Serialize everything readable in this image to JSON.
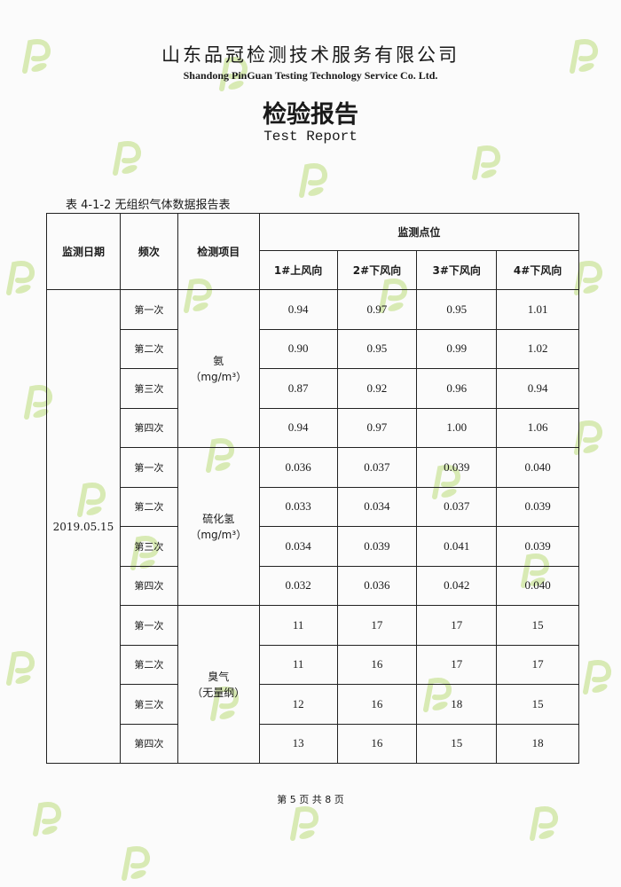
{
  "header": {
    "company_cn": "山东品冠检测技术服务有限公司",
    "company_en": "Shandong PinGuan Testing Technology Service Co. Ltd.",
    "title_cn": "检验报告",
    "title_en": "Test Report"
  },
  "watermark": {
    "logo_letter": "P",
    "color": "#9acd32"
  },
  "table": {
    "caption": "表 4-1-2 无组织气体数据报告表",
    "headers": {
      "date": "监测日期",
      "frequency": "频次",
      "item": "检测项目",
      "points_group": "监测点位"
    },
    "points": [
      "1#上风向",
      "2#下风向",
      "3#下风向",
      "4#下风向"
    ],
    "date": "2019.05.15",
    "frequencies": [
      "第一次",
      "第二次",
      "第三次",
      "第四次"
    ],
    "groups": [
      {
        "name": "氨",
        "unit": "（mg/m³）",
        "rows": [
          [
            "0.94",
            "0.97",
            "0.95",
            "1.01"
          ],
          [
            "0.90",
            "0.95",
            "0.99",
            "1.02"
          ],
          [
            "0.87",
            "0.92",
            "0.96",
            "0.94"
          ],
          [
            "0.94",
            "0.97",
            "1.00",
            "1.06"
          ]
        ]
      },
      {
        "name": "硫化氢",
        "unit": "（mg/m³）",
        "rows": [
          [
            "0.036",
            "0.037",
            "0.039",
            "0.040"
          ],
          [
            "0.033",
            "0.034",
            "0.037",
            "0.039"
          ],
          [
            "0.034",
            "0.039",
            "0.041",
            "0.039"
          ],
          [
            "0.032",
            "0.036",
            "0.042",
            "0.040"
          ]
        ]
      },
      {
        "name": "臭气",
        "unit": "（无量纲）",
        "rows": [
          [
            "11",
            "17",
            "17",
            "15"
          ],
          [
            "11",
            "16",
            "17",
            "17"
          ],
          [
            "12",
            "16",
            "18",
            "15"
          ],
          [
            "13",
            "16",
            "15",
            "18"
          ]
        ]
      }
    ]
  },
  "footer": {
    "page_text": "第 5 页 共 8 页"
  }
}
